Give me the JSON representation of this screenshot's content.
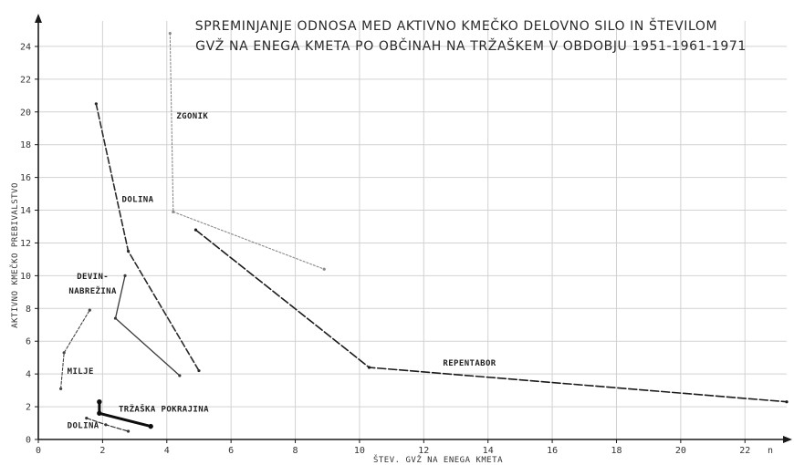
{
  "chart_data": {
    "type": "line",
    "title_lines": [
      "SPREMINJANJE ODNOSA MED AKTIVNO KMEČKO DELOVNO SILO IN ŠTEVILOM",
      "GVŽ NA ENEGA KMETA PO OBČINAH NA TRŽAŠKEM V OBDOBJU 1951-1961-1971"
    ],
    "xlabel": "ŠTEV. GVŽ NA ENEGA KMETA",
    "ylabel": "AKTIVNO KMEČKO PREBIVALSTVO",
    "xlim": [
      0,
      23.3
    ],
    "ylim": [
      0,
      26
    ],
    "x_ticks": [
      "0",
      "2",
      "4",
      "6",
      "8",
      "10",
      "12",
      "14",
      "16",
      "18",
      "20",
      "22"
    ],
    "x_tick_values": [
      0,
      2,
      4,
      6,
      8,
      10,
      12,
      14,
      16,
      18,
      20,
      22
    ],
    "x_axis_end_label": "n",
    "y_ticks": [
      "0",
      "2",
      "4",
      "6",
      "8",
      "10",
      "12",
      "14",
      "16",
      "18",
      "20",
      "22",
      "24"
    ],
    "y_tick_values": [
      0,
      2,
      4,
      6,
      8,
      10,
      12,
      14,
      16,
      18,
      20,
      22,
      24
    ],
    "grid": true,
    "series": [
      {
        "name": "ZGONIK",
        "points": [
          [
            4.1,
            24.8
          ],
          [
            4.2,
            13.9
          ],
          [
            8.9,
            10.4
          ]
        ],
        "color": "#8a8a8a",
        "width": 1.1,
        "dash": "2 2"
      },
      {
        "name": "DOLINA",
        "points": [
          [
            1.8,
            20.5
          ],
          [
            2.8,
            11.5
          ],
          [
            5.0,
            4.2
          ]
        ],
        "color": "#2a2a2a",
        "width": 1.6,
        "dash": "7 3"
      },
      {
        "name": "REPENTABOR",
        "points": [
          [
            4.9,
            12.8
          ],
          [
            10.3,
            4.4
          ],
          [
            23.3,
            2.3
          ]
        ],
        "color": "#1a1a1a",
        "width": 1.6,
        "dash": "9 3"
      },
      {
        "name": "DEVIN-NABREŽINA",
        "points": [
          [
            2.7,
            10.0
          ],
          [
            2.4,
            7.4
          ],
          [
            4.4,
            3.9
          ]
        ],
        "color": "#3a3a3a",
        "width": 1.3,
        "dash": ""
      },
      {
        "name": "MILJE",
        "points": [
          [
            0.7,
            3.1
          ],
          [
            0.8,
            5.3
          ],
          [
            1.6,
            7.9
          ]
        ],
        "color": "#444444",
        "width": 1.1,
        "dash": "3 2"
      },
      {
        "name": "TRŽAŠKA POKRAJINA",
        "points": [
          [
            1.9,
            2.3
          ],
          [
            1.9,
            1.6
          ],
          [
            3.5,
            0.8
          ]
        ],
        "color": "#0d0d0d",
        "width": 3,
        "dash": ""
      },
      {
        "name": "DOLINA",
        "points": [
          [
            1.5,
            1.3
          ],
          [
            2.1,
            0.9
          ],
          [
            2.8,
            0.5
          ]
        ],
        "color": "#333333",
        "width": 1.2,
        "dash": "5 2"
      }
    ],
    "annotations": [
      {
        "text": "ZGONIK",
        "x": 4.3,
        "y": 19.6
      },
      {
        "text": "DOLINA",
        "x": 2.6,
        "y": 14.5
      },
      {
        "text": "REPENTABOR",
        "x": 12.6,
        "y": 4.5
      },
      {
        "text": "DEVIN-",
        "x": 1.2,
        "y": 9.8
      },
      {
        "text": "NABREŽINA",
        "x": 0.95,
        "y": 8.9
      },
      {
        "text": "MILJE",
        "x": 0.9,
        "y": 4.0
      },
      {
        "text": "TRŽAŠKA POKRAJINA",
        "x": 2.5,
        "y": 1.7
      },
      {
        "text": "DOLINA",
        "x": 0.9,
        "y": 0.7
      }
    ]
  }
}
